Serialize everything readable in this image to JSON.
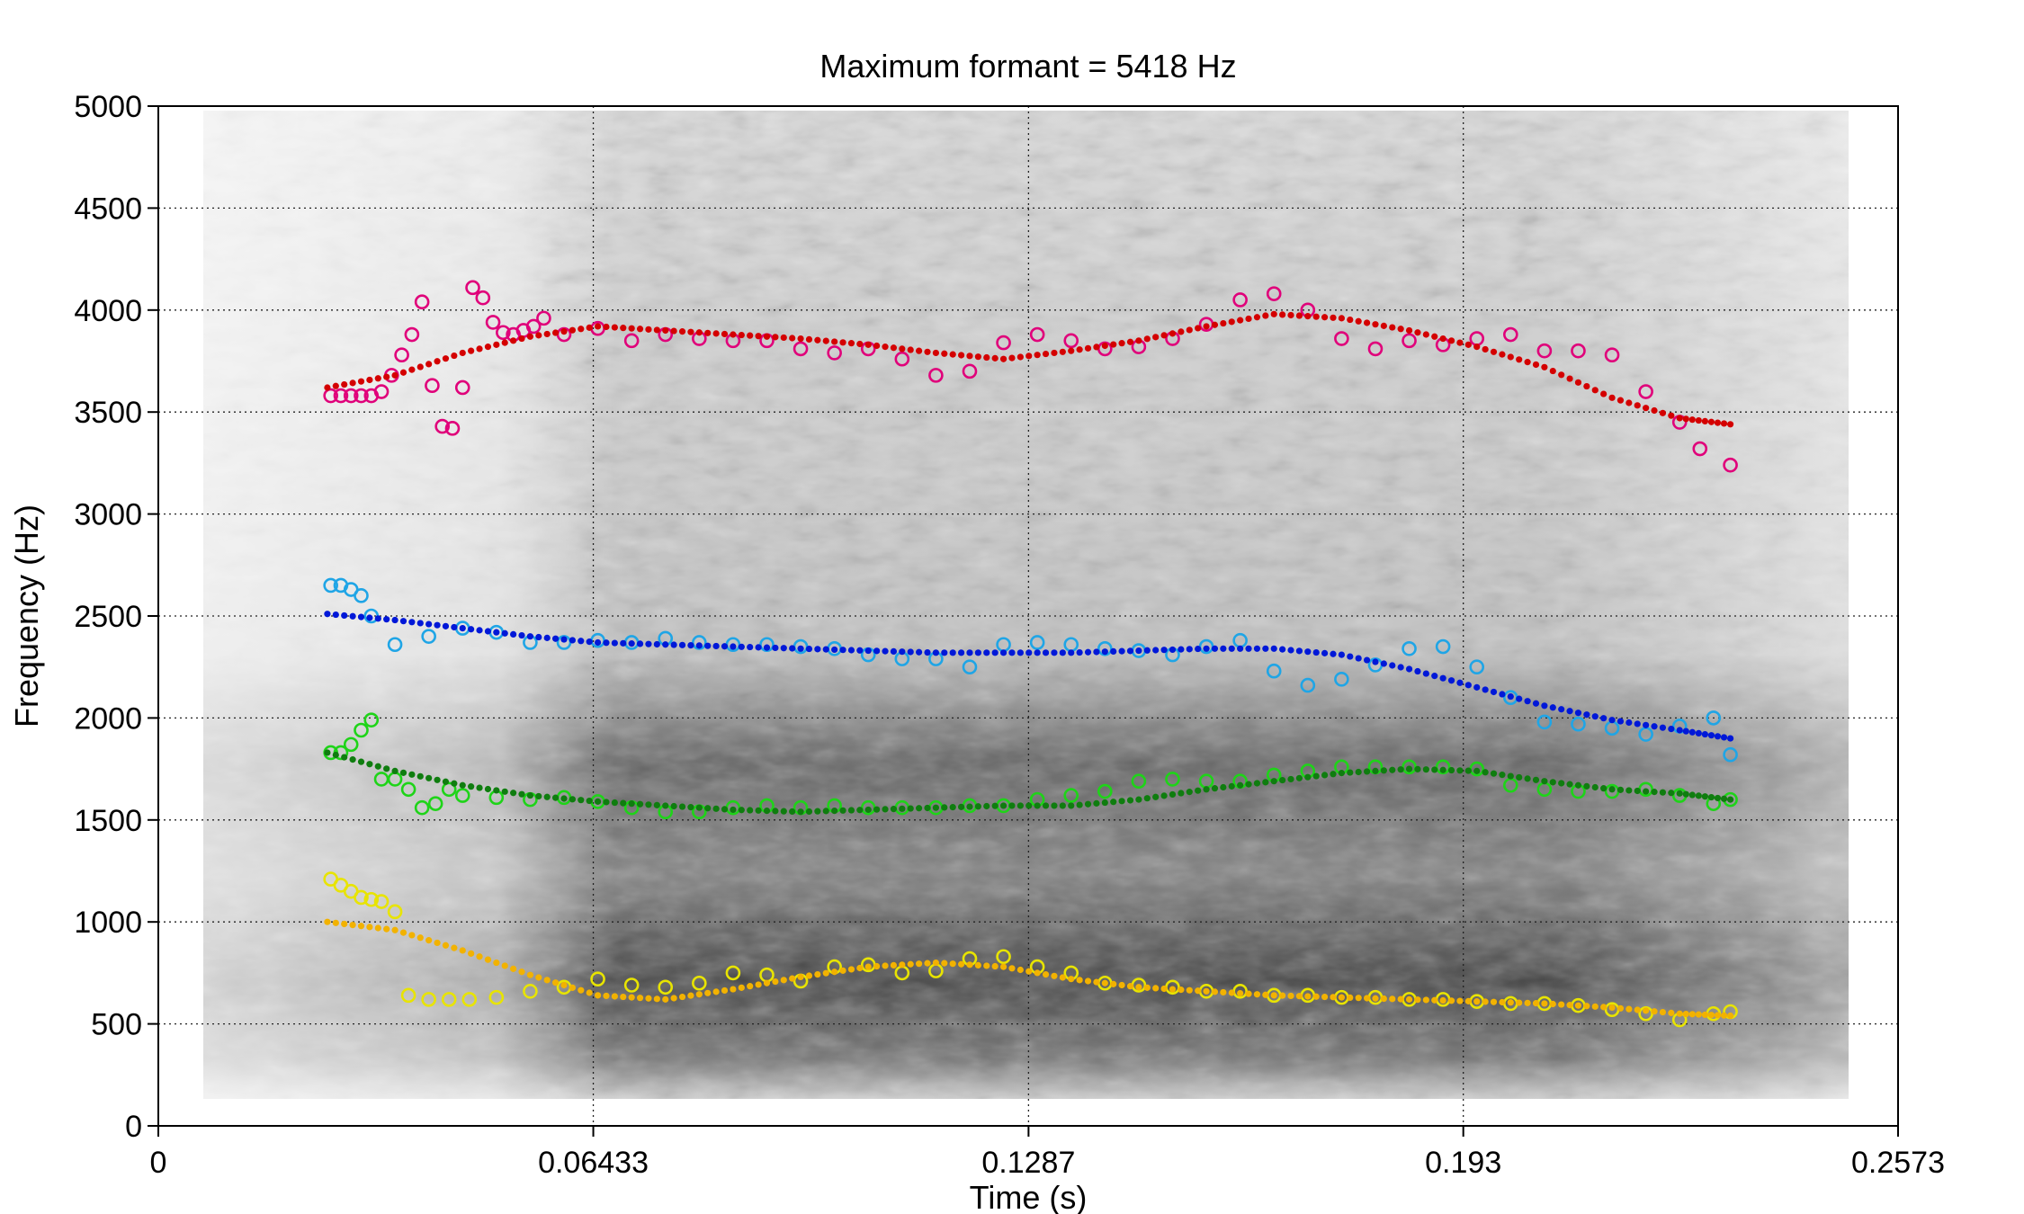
{
  "chart_data": {
    "type": "scatter",
    "title": "Maximum formant = 5418 Hz",
    "xlabel": "Time (s)",
    "ylabel": "Frequency (Hz)",
    "xlim": [
      0,
      0.2573
    ],
    "ylim": [
      0,
      5000
    ],
    "xticks": [
      "0",
      "0.06433",
      "0.1287",
      "0.193",
      "0.2573"
    ],
    "xtick_values": [
      0,
      0.06433,
      0.1287,
      0.193,
      0.2573
    ],
    "yticks": [
      "0",
      "500",
      "1000",
      "1500",
      "2000",
      "2500",
      "3000",
      "3500",
      "4000",
      "4500",
      "5000"
    ],
    "ytick_values": [
      0,
      500,
      1000,
      1500,
      2000,
      2500,
      3000,
      3500,
      4000,
      4500,
      5000
    ],
    "grid": true,
    "background": "spectrogram (grayscale)",
    "series": [
      {
        "color": "#e0007a",
        "marker": "open-circle",
        "x": [
          0.0255,
          0.027,
          0.0285,
          0.03,
          0.0315,
          0.033,
          0.0345,
          0.036,
          0.0375,
          0.039,
          0.0405,
          0.042,
          0.0435,
          0.045,
          0.0465,
          0.048,
          0.0495,
          0.051,
          0.0525,
          0.054,
          0.0555,
          0.057,
          0.06,
          0.065,
          0.07,
          0.075,
          0.08,
          0.085,
          0.09,
          0.095,
          0.1,
          0.105,
          0.11,
          0.115,
          0.12,
          0.125,
          0.13,
          0.135,
          0.14,
          0.145,
          0.15,
          0.155,
          0.16,
          0.165,
          0.17,
          0.175,
          0.18,
          0.185,
          0.19,
          0.195,
          0.2,
          0.205,
          0.21,
          0.215,
          0.22,
          0.225,
          0.228,
          0.2325
        ],
        "y": [
          3580,
          3580,
          3580,
          3580,
          3580,
          3600,
          3680,
          3780,
          3880,
          4040,
          3630,
          3430,
          3420,
          3620,
          4110,
          4060,
          3940,
          3890,
          3880,
          3900,
          3920,
          3960,
          3880,
          3910,
          3850,
          3880,
          3860,
          3850,
          3850,
          3810,
          3790,
          3810,
          3760,
          3680,
          3700,
          3840,
          3880,
          3850,
          3810,
          3820,
          3860,
          3930,
          4050,
          4080,
          4000,
          3860,
          3810,
          3850,
          3830,
          3860,
          3880,
          3800,
          3800,
          3780,
          3600,
          3450,
          3320,
          3240
        ]
      },
      {
        "color": "#d40000",
        "marker": "dot",
        "x": [
          0.025,
          0.035,
          0.045,
          0.055,
          0.065,
          0.075,
          0.085,
          0.095,
          0.105,
          0.115,
          0.125,
          0.135,
          0.145,
          0.155,
          0.165,
          0.175,
          0.185,
          0.195,
          0.205,
          0.215,
          0.225,
          0.2325
        ],
        "y": [
          3620,
          3680,
          3790,
          3870,
          3920,
          3900,
          3880,
          3860,
          3830,
          3790,
          3760,
          3800,
          3850,
          3920,
          3980,
          3960,
          3900,
          3820,
          3720,
          3570,
          3470,
          3440
        ]
      },
      {
        "color": "#1fa5e6",
        "marker": "open-circle",
        "x": [
          0.0255,
          0.027,
          0.0285,
          0.03,
          0.0315,
          0.035,
          0.04,
          0.045,
          0.05,
          0.055,
          0.06,
          0.065,
          0.07,
          0.075,
          0.08,
          0.085,
          0.09,
          0.095,
          0.1,
          0.105,
          0.11,
          0.115,
          0.12,
          0.125,
          0.13,
          0.135,
          0.14,
          0.145,
          0.15,
          0.155,
          0.16,
          0.165,
          0.17,
          0.175,
          0.18,
          0.185,
          0.19,
          0.195,
          0.2,
          0.205,
          0.21,
          0.215,
          0.22,
          0.225,
          0.23,
          0.2325
        ],
        "y": [
          2650,
          2650,
          2630,
          2600,
          2500,
          2360,
          2400,
          2440,
          2420,
          2370,
          2370,
          2380,
          2370,
          2390,
          2370,
          2360,
          2360,
          2350,
          2340,
          2310,
          2290,
          2290,
          2250,
          2360,
          2370,
          2360,
          2340,
          2330,
          2310,
          2350,
          2380,
          2230,
          2160,
          2190,
          2260,
          2340,
          2350,
          2250,
          2100,
          1980,
          1970,
          1950,
          1920,
          1960,
          2000,
          1820
        ]
      },
      {
        "color": "#0018d8",
        "marker": "dot",
        "x": [
          0.025,
          0.035,
          0.045,
          0.055,
          0.065,
          0.075,
          0.085,
          0.095,
          0.105,
          0.115,
          0.125,
          0.135,
          0.145,
          0.155,
          0.165,
          0.175,
          0.185,
          0.195,
          0.205,
          0.215,
          0.225,
          0.2325
        ],
        "y": [
          2510,
          2480,
          2440,
          2400,
          2370,
          2360,
          2350,
          2340,
          2330,
          2320,
          2320,
          2320,
          2330,
          2340,
          2340,
          2310,
          2240,
          2150,
          2060,
          1990,
          1940,
          1900
        ]
      },
      {
        "color": "#1ed418",
        "marker": "open-circle",
        "x": [
          0.0255,
          0.027,
          0.0285,
          0.03,
          0.0315,
          0.033,
          0.035,
          0.037,
          0.039,
          0.041,
          0.043,
          0.045,
          0.05,
          0.055,
          0.06,
          0.065,
          0.07,
          0.075,
          0.08,
          0.085,
          0.09,
          0.095,
          0.1,
          0.105,
          0.11,
          0.115,
          0.12,
          0.125,
          0.13,
          0.135,
          0.14,
          0.145,
          0.15,
          0.155,
          0.16,
          0.165,
          0.17,
          0.175,
          0.18,
          0.185,
          0.19,
          0.195,
          0.2,
          0.205,
          0.21,
          0.215,
          0.22,
          0.225,
          0.23,
          0.2325
        ],
        "y": [
          1830,
          1830,
          1870,
          1940,
          1990,
          1700,
          1700,
          1650,
          1560,
          1580,
          1650,
          1620,
          1610,
          1600,
          1610,
          1590,
          1560,
          1540,
          1540,
          1560,
          1570,
          1560,
          1570,
          1560,
          1560,
          1560,
          1570,
          1570,
          1600,
          1620,
          1640,
          1690,
          1700,
          1690,
          1690,
          1720,
          1740,
          1760,
          1760,
          1760,
          1760,
          1750,
          1670,
          1650,
          1640,
          1640,
          1650,
          1620,
          1580,
          1600
        ]
      },
      {
        "color": "#0f7d0f",
        "marker": "dot",
        "x": [
          0.025,
          0.035,
          0.045,
          0.055,
          0.065,
          0.075,
          0.085,
          0.095,
          0.105,
          0.115,
          0.125,
          0.135,
          0.145,
          0.155,
          0.165,
          0.175,
          0.185,
          0.195,
          0.205,
          0.215,
          0.225,
          0.2325
        ],
        "y": [
          1830,
          1740,
          1670,
          1620,
          1590,
          1570,
          1550,
          1540,
          1550,
          1560,
          1570,
          1570,
          1600,
          1650,
          1690,
          1730,
          1750,
          1740,
          1690,
          1650,
          1630,
          1600
        ]
      },
      {
        "color": "#e8e400",
        "marker": "open-circle",
        "x": [
          0.0255,
          0.027,
          0.0285,
          0.03,
          0.0315,
          0.033,
          0.035,
          0.037,
          0.04,
          0.043,
          0.046,
          0.05,
          0.055,
          0.06,
          0.065,
          0.07,
          0.075,
          0.08,
          0.085,
          0.09,
          0.095,
          0.1,
          0.105,
          0.11,
          0.115,
          0.12,
          0.125,
          0.13,
          0.135,
          0.14,
          0.145,
          0.15,
          0.155,
          0.16,
          0.165,
          0.17,
          0.175,
          0.18,
          0.185,
          0.19,
          0.195,
          0.2,
          0.205,
          0.21,
          0.215,
          0.22,
          0.225,
          0.23,
          0.2325
        ],
        "y": [
          1210,
          1180,
          1150,
          1120,
          1110,
          1100,
          1050,
          640,
          620,
          620,
          620,
          630,
          660,
          680,
          720,
          690,
          680,
          700,
          750,
          740,
          710,
          780,
          790,
          750,
          760,
          820,
          830,
          780,
          750,
          700,
          690,
          680,
          660,
          660,
          640,
          640,
          630,
          630,
          620,
          620,
          610,
          600,
          600,
          590,
          570,
          550,
          520,
          550,
          560
        ]
      },
      {
        "color": "#f2b200",
        "marker": "dot",
        "x": [
          0.025,
          0.035,
          0.045,
          0.055,
          0.065,
          0.075,
          0.085,
          0.095,
          0.105,
          0.115,
          0.125,
          0.135,
          0.145,
          0.155,
          0.165,
          0.175,
          0.185,
          0.195,
          0.205,
          0.215,
          0.225,
          0.2325
        ],
        "y": [
          1000,
          960,
          860,
          740,
          640,
          620,
          670,
          730,
          780,
          800,
          780,
          720,
          680,
          660,
          640,
          630,
          620,
          610,
          600,
          580,
          550,
          540
        ]
      }
    ]
  }
}
